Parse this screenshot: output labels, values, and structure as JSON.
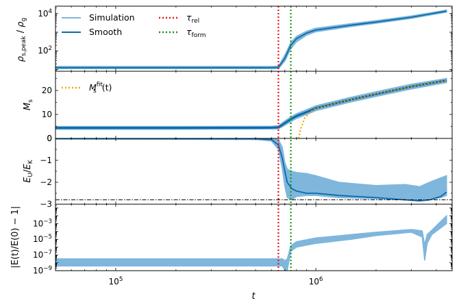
{
  "colors": {
    "simulation": "#7fb6dc",
    "smooth": "#0a6aa8",
    "tau_rel": "#ee1111",
    "tau_form": "#119911",
    "fit": "#f0a500",
    "ref_line": "#000000"
  },
  "chart_data": {
    "type": "line",
    "xscale": "log",
    "xlim": [
      50000,
      4800000
    ],
    "xlabel": "t",
    "x_ticks": [
      {
        "value": 100000,
        "base": "10",
        "exp": "5"
      },
      {
        "value": 1000000,
        "base": "10",
        "exp": "6"
      }
    ],
    "vlines": [
      {
        "name": "τ_rel",
        "x": 650000,
        "style": "dotted",
        "color": "#ee1111"
      },
      {
        "name": "τ_form",
        "x": 750000,
        "style": "dotted",
        "color": "#119911"
      }
    ],
    "legend_top": {
      "position": "top-left",
      "entries": [
        {
          "label": "Simulation",
          "kind": "line"
        },
        {
          "label": "Smooth",
          "kind": "line"
        },
        {
          "label": "τ",
          "sub": "rel",
          "kind": "dotted-red"
        },
        {
          "label": "τ",
          "sub": "form",
          "kind": "dotted-green"
        }
      ]
    },
    "panels": [
      {
        "name": "peak-density",
        "ylabel": "ρ_s,peak / ρ_g",
        "yscale": "log",
        "ylim": [
          8,
          25000
        ],
        "y_ticks": [
          {
            "value": 100,
            "base": "10",
            "exp": "2"
          },
          {
            "value": 10000,
            "base": "10",
            "exp": "4"
          }
        ],
        "series": [
          {
            "name": "Simulation",
            "band": true,
            "x": [
              50000,
              200000,
              600000,
              650000,
              700000,
              750000,
              800000,
              900000,
              1000000,
              1500000,
              2000000,
              3000000,
              4500000
            ],
            "lo": [
              11,
              11,
              11,
              11,
              28,
              130,
              300,
              700,
              1050,
              2000,
              3000,
              5500,
              12000
            ],
            "hi": [
              14.5,
              14.5,
              14.5,
              15,
              60,
              280,
              600,
              1150,
              1650,
              2900,
              4200,
              7500,
              15500
            ]
          },
          {
            "name": "Smooth",
            "x": [
              50000,
              200000,
              600000,
              650000,
              700000,
              750000,
              800000,
              900000,
              1000000,
              1500000,
              2000000,
              3000000,
              4500000
            ],
            "y": [
              12.5,
              12.5,
              12.5,
              13,
              40,
              200,
              450,
              900,
              1300,
              2400,
              3500,
              6400,
              13500
            ]
          }
        ]
      },
      {
        "name": "mass",
        "ylabel": "M_s",
        "yscale": "linear",
        "ylim": [
          0,
          28
        ],
        "y_ticks": [
          {
            "value": 0,
            "label": "0"
          },
          {
            "value": 10,
            "label": "10"
          },
          {
            "value": 20,
            "label": "20"
          }
        ],
        "legend": {
          "position": "top-left",
          "entries": [
            {
              "label": "M_s^fit(t)",
              "kind": "dotted-orange"
            }
          ]
        },
        "series": [
          {
            "name": "Simulation",
            "band": true,
            "x": [
              50000,
              200000,
              600000,
              650000,
              700000,
              750000,
              800000,
              900000,
              1000000,
              1500000,
              2000000,
              3000000,
              4500000
            ],
            "lo": [
              3.8,
              3.8,
              3.9,
              4.0,
              5.5,
              7.0,
              8.3,
              10.0,
              11.6,
              15.2,
              17.5,
              20.6,
              23.3
            ],
            "hi": [
              5.0,
              5.0,
              5.1,
              5.3,
              7.3,
              9.0,
              10.3,
              12.0,
              13.6,
              17.2,
              19.5,
              22.6,
              25.0
            ]
          },
          {
            "name": "Smooth",
            "x": [
              50000,
              200000,
              600000,
              650000,
              700000,
              750000,
              800000,
              900000,
              1000000,
              1500000,
              2000000,
              3000000,
              4500000
            ],
            "y": [
              4.4,
              4.4,
              4.5,
              4.6,
              6.4,
              8.0,
              9.3,
              11.0,
              12.6,
              16.2,
              18.5,
              21.6,
              24.2
            ]
          },
          {
            "name": "M_s^fit(t)",
            "style": "dotted",
            "x": [
              820000,
              840000,
              880000,
              950000,
              1000000,
              1500000,
              2000000,
              3000000,
              4500000
            ],
            "y": [
              0,
              4.0,
              8.5,
              11.3,
              12.5,
              16.2,
              18.6,
              21.6,
              24.2
            ]
          }
        ]
      },
      {
        "name": "energy-ratio",
        "ylabel": "E_U/E_K",
        "yscale": "linear",
        "ylim": [
          -3.0,
          0.0
        ],
        "y_ticks": [
          {
            "value": 0,
            "label": "0"
          },
          {
            "value": -1,
            "label": "−1"
          },
          {
            "value": -2,
            "label": "−2"
          },
          {
            "value": -3,
            "label": "−3"
          }
        ],
        "hline": {
          "y": -2.8,
          "style": "dashdot"
        },
        "series": [
          {
            "name": "Simulation",
            "band": true,
            "x": [
              50000,
              500000,
              600000,
              650000,
              680000,
              700000,
              720000,
              760000,
              800000,
              900000,
              1000000,
              1300000,
              2000000,
              2800000,
              3300000,
              3700000,
              4200000,
              4500000
            ],
            "lo": [
              -0.03,
              -0.05,
              -0.12,
              -0.5,
              -1.4,
              -2.2,
              -2.7,
              -2.8,
              -2.65,
              -2.6,
              -2.6,
              -2.7,
              -2.75,
              -2.8,
              -2.85,
              -2.8,
              -2.7,
              -2.6
            ],
            "hi": [
              0.0,
              0.0,
              0.0,
              -0.05,
              -0.4,
              -1.1,
              -1.4,
              -1.5,
              -1.55,
              -1.6,
              -1.7,
              -2.0,
              -2.15,
              -2.1,
              -2.2,
              -2.0,
              -1.8,
              -1.7
            ]
          },
          {
            "name": "Smooth",
            "x": [
              50000,
              500000,
              600000,
              650000,
              680000,
              700000,
              720000,
              760000,
              800000,
              900000,
              1000000,
              1300000,
              2000000,
              2800000,
              3300000,
              3700000,
              4200000,
              4500000
            ],
            "y": [
              -0.01,
              -0.02,
              -0.05,
              -0.3,
              -0.9,
              -1.5,
              -2.0,
              -2.3,
              -2.4,
              -2.5,
              -2.5,
              -2.6,
              -2.7,
              -2.8,
              -2.85,
              -2.8,
              -2.65,
              -2.45
            ]
          }
        ]
      },
      {
        "name": "energy-error",
        "ylabel": "|E(t)/E(0) − 1|",
        "yscale": "log",
        "ylim": [
          1e-09,
          0.3
        ],
        "y_ticks": [
          {
            "value": 1e-09,
            "base": "10",
            "exp": "−9"
          },
          {
            "value": 1e-07,
            "base": "10",
            "exp": "−7"
          },
          {
            "value": 1e-05,
            "base": "10",
            "exp": "−5"
          },
          {
            "value": 0.001,
            "base": "10",
            "exp": "−3"
          }
        ],
        "series": [
          {
            "name": "Simulation",
            "band": true,
            "x": [
              50000,
              600000,
              680000,
              700000,
              720000,
              750000,
              800000,
              1000000,
              1500000,
              2000000,
              3000000,
              3400000,
              3500000,
              3600000,
              3800000,
              4500000
            ],
            "lo": [
              4e-09,
              4e-09,
              4e-09,
              1.2e-09,
              1.2e-09,
              3e-07,
              1e-06,
              3e-06,
              1e-05,
              3e-05,
              8e-05,
              2e-05,
              2e-08,
              3e-06,
              4e-05,
              0.001
            ],
            "hi": [
              3.2e-08,
              3.2e-08,
              3.2e-08,
              2e-08,
              3e-08,
              1.5e-06,
              5e-06,
              1.5e-05,
              4e-05,
              8e-05,
              0.00018,
              0.00012,
              2e-06,
              4e-05,
              0.00015,
              0.01
            ]
          }
        ]
      }
    ]
  }
}
